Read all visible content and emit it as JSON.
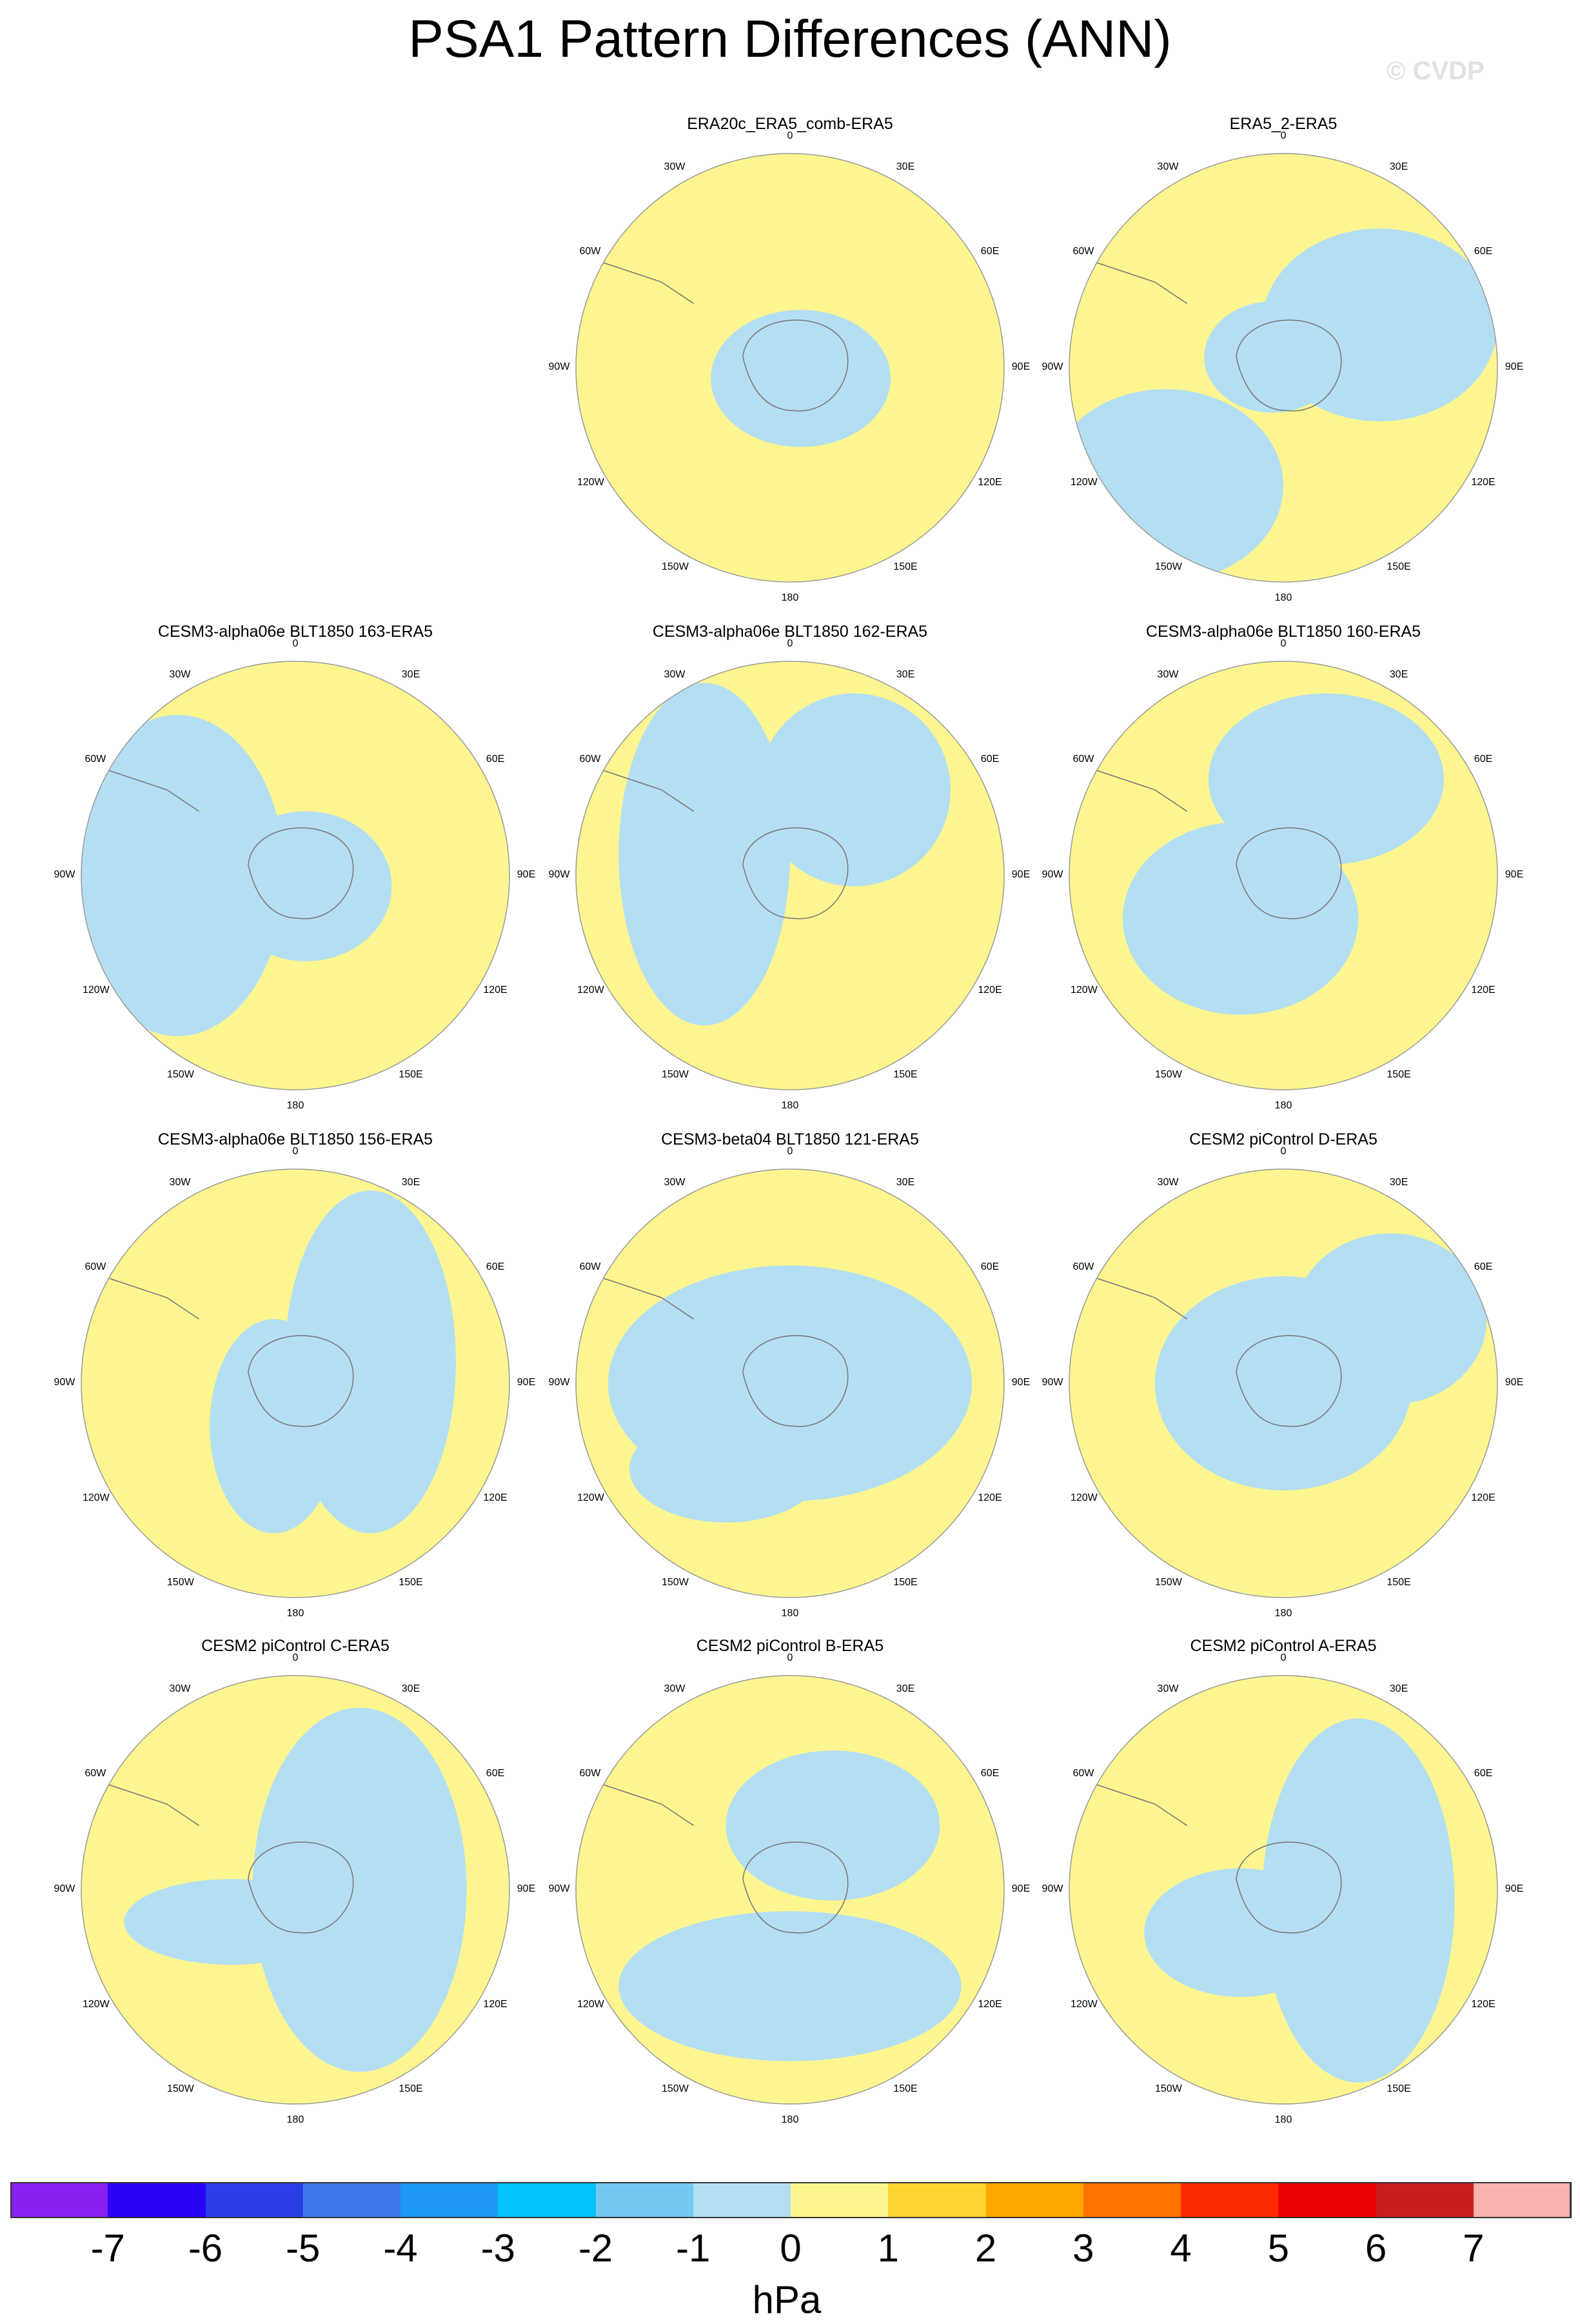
{
  "title": "PSA1 Pattern Differences (ANN)",
  "watermark": "© CVDP",
  "colors": {
    "background_fill": "#fdf690",
    "negative_fill": "#b4dff3",
    "coast": "#7a7a7a",
    "outline": "#999999"
  },
  "longitude_labels": [
    "0",
    "30E",
    "60E",
    "90E",
    "120E",
    "150E",
    "180",
    "150W",
    "120W",
    "90W",
    "60W",
    "30W"
  ],
  "panels": [
    {
      "title": "ERA20c_ERA5_comb-ERA5"
    },
    {
      "title": "ERA5_2-ERA5"
    },
    {
      "title": "CESM3-alpha06e BLT1850 163-ERA5"
    },
    {
      "title": "CESM3-alpha06e BLT1850 162-ERA5"
    },
    {
      "title": "CESM3-alpha06e BLT1850 160-ERA5"
    },
    {
      "title": "CESM3-alpha06e BLT1850 156-ERA5"
    },
    {
      "title": "CESM3-beta04 BLT1850 121-ERA5"
    },
    {
      "title": "CESM2 piControl D-ERA5"
    },
    {
      "title": "CESM2 piControl C-ERA5"
    },
    {
      "title": "CESM2 piControl B-ERA5"
    },
    {
      "title": "CESM2 piControl A-ERA5"
    }
  ],
  "colorbar": {
    "labels": [
      "-7",
      "-6",
      "-5",
      "-4",
      "-3",
      "-2",
      "-1",
      "0",
      "1",
      "2",
      "3",
      "4",
      "5",
      "6",
      "7"
    ],
    "unit": "hPa",
    "colors": [
      "#8a1ff0",
      "#2a00f5",
      "#2b3de6",
      "#3d78ed",
      "#1e98f5",
      "#00c3fa",
      "#74c8f2",
      "#b4dff3",
      "#fdf690",
      "#fdd331",
      "#fda600",
      "#fd7300",
      "#fd2a00",
      "#eb0000",
      "#c91e1e",
      "#fdb2b2"
    ]
  }
}
